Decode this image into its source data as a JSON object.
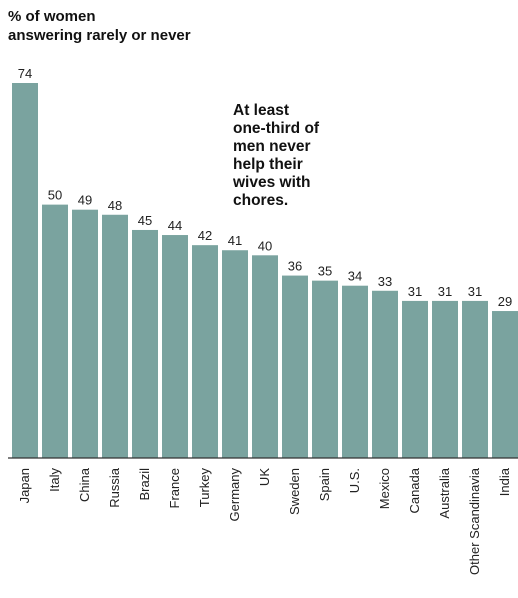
{
  "chart_data": {
    "type": "bar",
    "ylabel": [
      "% of women",
      "answering rarely or never"
    ],
    "annotation": [
      "At least",
      "one-third of",
      "men never",
      "help their",
      "wives with",
      "chores."
    ],
    "categories": [
      "Japan",
      "Italy",
      "China",
      "Russia",
      "Brazil",
      "France",
      "Turkey",
      "Germany",
      "UK",
      "Sweden",
      "Spain",
      "U.S.",
      "Mexico",
      "Canada",
      "Australia",
      "Other Scandinavia",
      "India"
    ],
    "values": [
      74,
      50,
      49,
      48,
      45,
      44,
      42,
      41,
      40,
      36,
      35,
      34,
      33,
      31,
      31,
      31,
      29
    ],
    "value_labels": [
      "74",
      "50",
      "49",
      "48",
      "45",
      "44",
      "42",
      "41",
      "40",
      "36",
      "35",
      "34",
      "33",
      "31",
      "31",
      "31",
      "29"
    ],
    "ylim": [
      0,
      74
    ],
    "grid": false,
    "bar_color": "#7aa39f",
    "axis_color": "#333333"
  }
}
